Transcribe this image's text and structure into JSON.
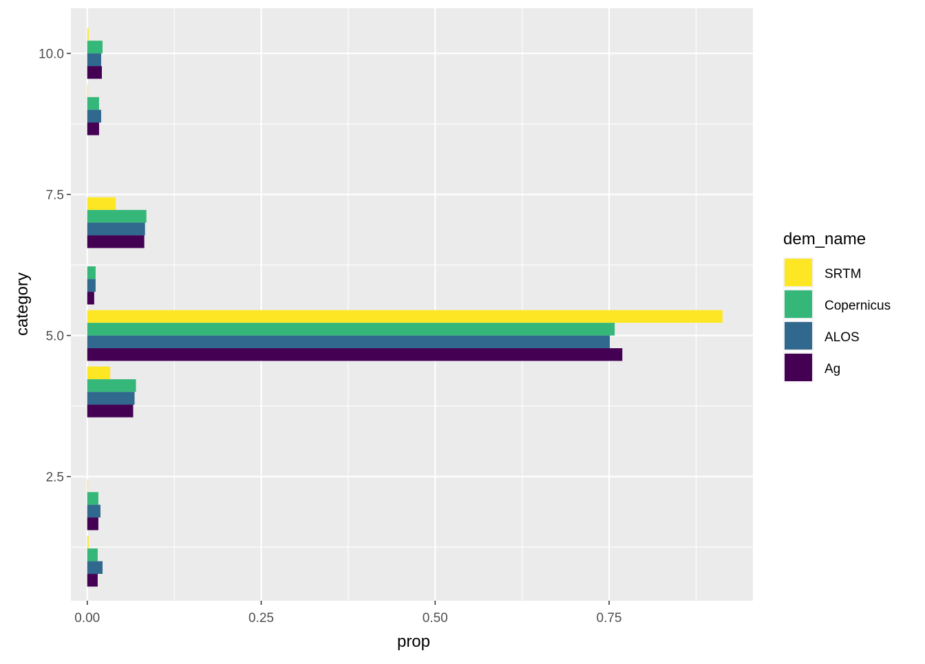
{
  "chart_data": {
    "type": "bar",
    "orientation": "horizontal",
    "xlabel": "prop",
    "ylabel": "category",
    "xlim": [
      -0.0235,
      0.9567
    ],
    "ylim": [
      0.3,
      10.8
    ],
    "x_ticks": [
      0,
      0.25,
      0.5,
      0.75
    ],
    "x_tick_labels": [
      "0.00",
      "0.25",
      "0.50",
      "0.75"
    ],
    "x_minor_ticks": [
      0.125,
      0.375,
      0.625,
      0.875
    ],
    "y_ticks": [
      2.5,
      5.0,
      7.5,
      10.0
    ],
    "y_tick_labels": [
      "2.5",
      "5.0",
      "7.5",
      "10.0"
    ],
    "y_minor_ticks": [
      1.25,
      3.75,
      6.25,
      8.75
    ],
    "categories": [
      1,
      2,
      4,
      5,
      6,
      7,
      9,
      10
    ],
    "grid": true,
    "legend": {
      "title": "dem_name",
      "position": "right"
    },
    "series": [
      {
        "name": "SRTM",
        "color": "#FDE725",
        "values": [
          0.002,
          0.001,
          0.033,
          0.913,
          0.0,
          0.041,
          0.001,
          0.002
        ]
      },
      {
        "name": "Copernicus",
        "color": "#35B779",
        "values": [
          0.015,
          0.016,
          0.07,
          0.758,
          0.012,
          0.085,
          0.017,
          0.022
        ]
      },
      {
        "name": "ALOS",
        "color": "#31688E",
        "values": [
          0.022,
          0.019,
          0.068,
          0.751,
          0.012,
          0.083,
          0.02,
          0.02
        ]
      },
      {
        "name": "Ag",
        "color": "#440154",
        "values": [
          0.015,
          0.016,
          0.066,
          0.769,
          0.01,
          0.082,
          0.017,
          0.021
        ]
      }
    ]
  }
}
